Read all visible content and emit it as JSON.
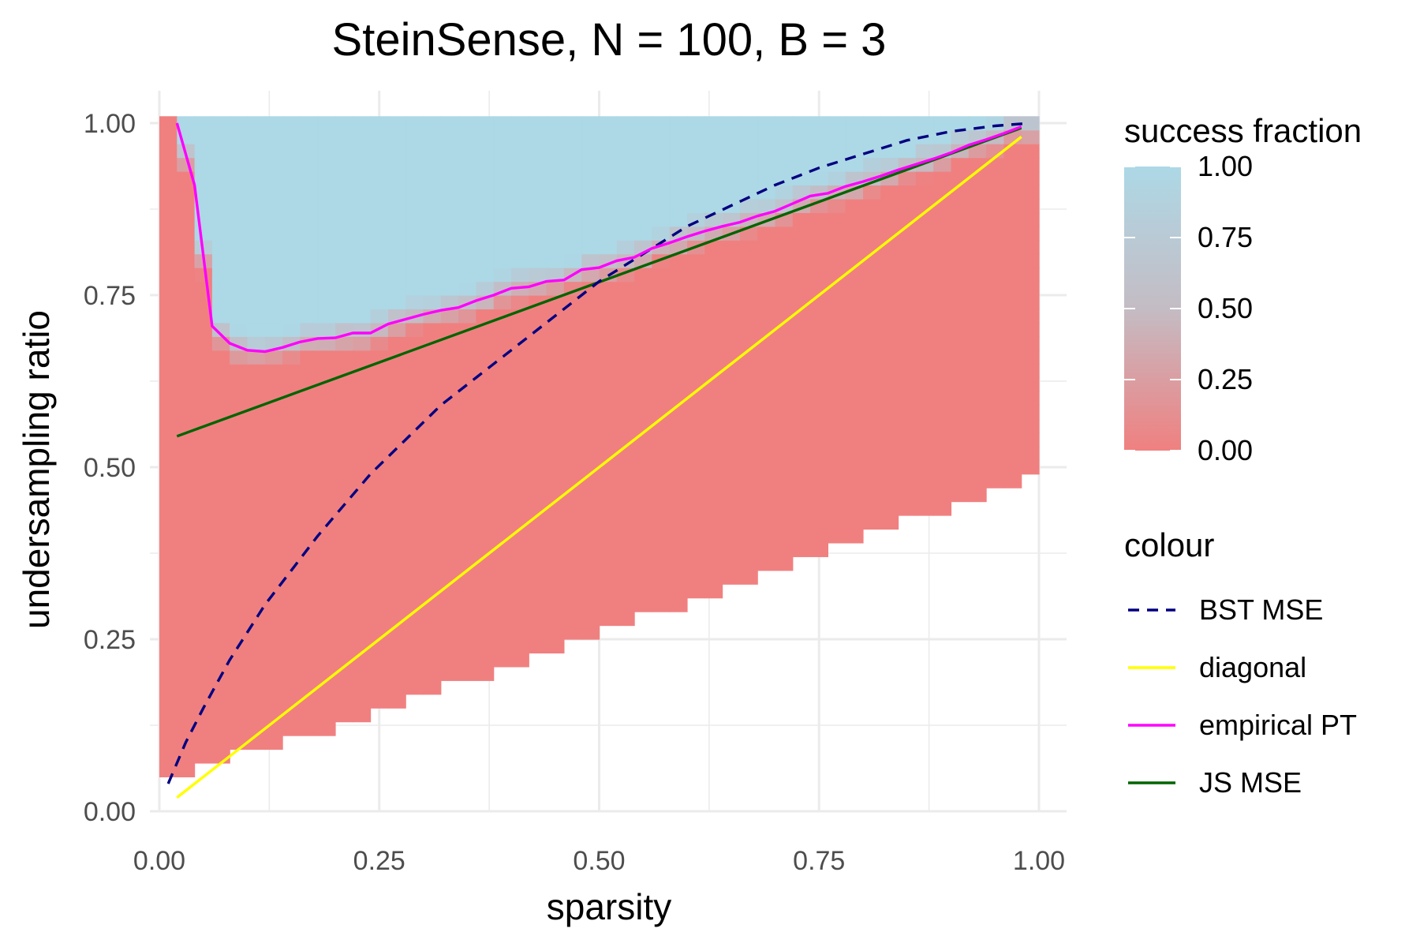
{
  "chart_data": {
    "type": "heatmap",
    "title": "SteinSense, N = 100, B = 3",
    "xlabel": "sparsity",
    "ylabel": "undersampling ratio",
    "xlim": [
      0,
      1
    ],
    "ylim": [
      0,
      1
    ],
    "x_ticks": [
      "0.00",
      "0.25",
      "0.50",
      "0.75",
      "1.00"
    ],
    "y_ticks": [
      "0.00",
      "0.25",
      "0.50",
      "0.75",
      "1.00"
    ],
    "grid": true,
    "heatmap": {
      "fill_legend_title": "success fraction",
      "fill_range": [
        0,
        1
      ],
      "fill_ticks": [
        "0.00",
        "0.25",
        "0.50",
        "0.75",
        "1.00"
      ],
      "low_color": "#f08080",
      "high_color": "#add8e6",
      "cell_width": 0.02,
      "cell_height": 0.02,
      "sparsity_range": [
        0.01,
        0.99
      ],
      "lower_boundary": [
        [
          0.01,
          0.05
        ],
        [
          0.1,
          0.1
        ],
        [
          0.2,
          0.13
        ],
        [
          0.3,
          0.18
        ],
        [
          0.4,
          0.22
        ],
        [
          0.5,
          0.27
        ],
        [
          0.6,
          0.31
        ],
        [
          0.7,
          0.36
        ],
        [
          0.8,
          0.41
        ],
        [
          0.9,
          0.45
        ],
        [
          0.99,
          0.49
        ]
      ]
    },
    "color_legend_title": "colour",
    "series": [
      {
        "name": "BST MSE",
        "color": "#000080",
        "dash": "dashed",
        "x": [
          0.01,
          0.03,
          0.05,
          0.08,
          0.1,
          0.12,
          0.15,
          0.18,
          0.2,
          0.24,
          0.28,
          0.32,
          0.36,
          0.4,
          0.45,
          0.5,
          0.55,
          0.6,
          0.65,
          0.7,
          0.75,
          0.8,
          0.85,
          0.9,
          0.95,
          0.99
        ],
        "y": [
          0.04,
          0.1,
          0.15,
          0.22,
          0.26,
          0.3,
          0.35,
          0.4,
          0.43,
          0.49,
          0.54,
          0.59,
          0.63,
          0.67,
          0.72,
          0.77,
          0.81,
          0.85,
          0.88,
          0.91,
          0.935,
          0.955,
          0.975,
          0.988,
          0.996,
          1.0
        ]
      },
      {
        "name": "diagonal",
        "color": "#ffff00",
        "dash": "solid",
        "x": [
          0.02,
          0.98
        ],
        "y": [
          0.02,
          0.98
        ]
      },
      {
        "name": "empirical PT",
        "color": "#ff00ff",
        "dash": "solid",
        "x": [
          0.02,
          0.04,
          0.06,
          0.08,
          0.1,
          0.12,
          0.14,
          0.16,
          0.18,
          0.2,
          0.22,
          0.24,
          0.26,
          0.28,
          0.3,
          0.32,
          0.34,
          0.36,
          0.38,
          0.4,
          0.42,
          0.44,
          0.46,
          0.48,
          0.5,
          0.52,
          0.54,
          0.56,
          0.58,
          0.6,
          0.62,
          0.64,
          0.66,
          0.68,
          0.7,
          0.72,
          0.74,
          0.76,
          0.78,
          0.8,
          0.82,
          0.84,
          0.86,
          0.88,
          0.9,
          0.92,
          0.94,
          0.96,
          0.98
        ],
        "y": [
          1.0,
          0.91,
          0.705,
          0.68,
          0.67,
          0.668,
          0.674,
          0.682,
          0.687,
          0.688,
          0.695,
          0.695,
          0.708,
          0.715,
          0.722,
          0.728,
          0.732,
          0.742,
          0.75,
          0.76,
          0.762,
          0.77,
          0.772,
          0.787,
          0.79,
          0.8,
          0.805,
          0.818,
          0.826,
          0.835,
          0.843,
          0.85,
          0.856,
          0.865,
          0.872,
          0.883,
          0.894,
          0.898,
          0.908,
          0.915,
          0.923,
          0.932,
          0.94,
          0.948,
          0.957,
          0.968,
          0.976,
          0.985,
          0.995
        ]
      },
      {
        "name": "JS MSE",
        "color": "#006400",
        "dash": "solid",
        "x": [
          0.02,
          0.98
        ],
        "y": [
          0.545,
          0.993
        ]
      }
    ],
    "legend_position": "right"
  }
}
